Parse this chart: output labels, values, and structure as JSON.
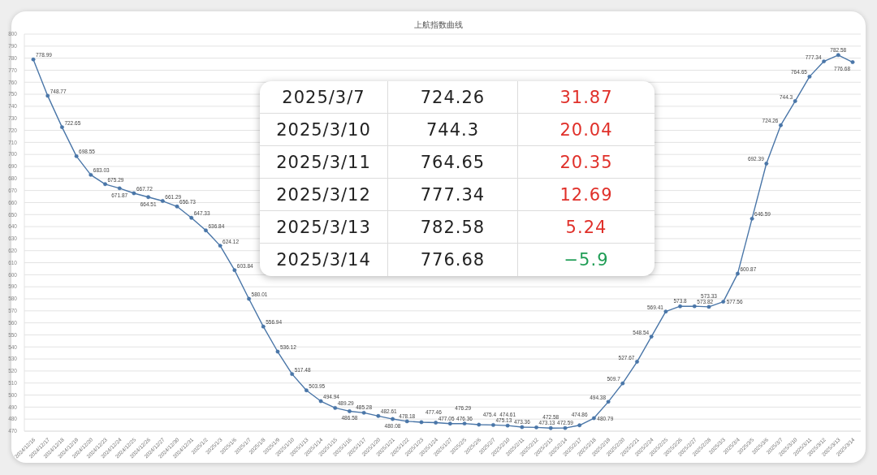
{
  "chart_data": {
    "type": "line",
    "title": "上航指数曲线",
    "categories": [
      "2024/12/16",
      "2024/12/17",
      "2024/12/18",
      "2024/12/19",
      "2024/12/20",
      "2024/12/23",
      "2024/12/24",
      "2024/12/25",
      "2024/12/26",
      "2024/12/27",
      "2024/12/30",
      "2024/12/31",
      "2025/1/2",
      "2025/1/3",
      "2025/1/6",
      "2025/1/7",
      "2025/1/8",
      "2025/1/9",
      "2025/1/10",
      "2025/1/13",
      "2025/1/14",
      "2025/1/15",
      "2025/1/16",
      "2025/1/17",
      "2025/1/20",
      "2025/1/21",
      "2025/1/22",
      "2025/1/23",
      "2025/1/24",
      "2025/1/27",
      "2025/2/5",
      "2025/2/6",
      "2025/2/7",
      "2025/2/10",
      "2025/2/11",
      "2025/2/12",
      "2025/2/13",
      "2025/2/14",
      "2025/2/17",
      "2025/2/18",
      "2025/2/19",
      "2025/2/20",
      "2025/2/21",
      "2025/2/24",
      "2025/2/25",
      "2025/2/26",
      "2025/2/27",
      "2025/2/28",
      "2025/3/3",
      "2025/3/4",
      "2025/3/5",
      "2025/3/6",
      "2025/3/7",
      "2025/3/10",
      "2025/3/11",
      "2025/3/12",
      "2025/3/13",
      "2025/3/14"
    ],
    "values": [
      778.99,
      748.77,
      722.65,
      698.55,
      683.03,
      675.29,
      671.87,
      667.72,
      664.51,
      661.29,
      656.73,
      647.33,
      636.84,
      624.12,
      603.84,
      580.01,
      556.94,
      536.12,
      517.48,
      503.95,
      494.94,
      489.29,
      486.58,
      485.28,
      482.61,
      480.08,
      478.18,
      477.46,
      477.05,
      476.29,
      476.36,
      475.4,
      475.13,
      474.61,
      473.36,
      473.13,
      472.58,
      472.59,
      474.86,
      480.79,
      494.38,
      509.7,
      527.67,
      548.54,
      569.41,
      573.8,
      573.82,
      573.33,
      577.56,
      600.87,
      646.59,
      692.39,
      724.26,
      744.3,
      764.65,
      777.34,
      782.58,
      776.68
    ],
    "color": "#4a76a8",
    "marker": "circle",
    "line_style": "solid",
    "data_labels": true,
    "ylim": [
      470,
      800
    ],
    "yticks": [
      470,
      480,
      490,
      500,
      510,
      520,
      530,
      540,
      550,
      560,
      570,
      580,
      590,
      600,
      610,
      620,
      630,
      640,
      650,
      660,
      670,
      680,
      690,
      700,
      710,
      720,
      730,
      740,
      750,
      760,
      770,
      780,
      790,
      800
    ],
    "grid": "y",
    "annotations": [
      "2025/3/7",
      "724.26",
      "31.87",
      "2025/3/10",
      "744.3",
      "20.04",
      "2025/3/11",
      "764.65",
      "20.35",
      "2025/3/12",
      "777.34",
      "12.69",
      "2025/3/13",
      "782.58",
      "5.24",
      "2025/3/14",
      "776.68",
      "−5.9"
    ]
  }
}
